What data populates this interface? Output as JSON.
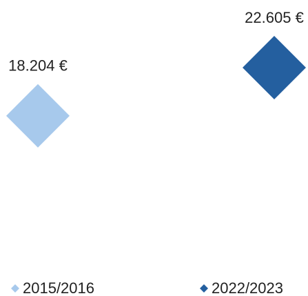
{
  "chart_data": {
    "type": "scatter",
    "ylim": [
      10000,
      25000
    ],
    "series": [
      {
        "name": "2015/2016",
        "color": "#a7c9ec",
        "values": [
          18204
        ],
        "value_labels": [
          "18.204 €"
        ]
      },
      {
        "name": "2022/2023",
        "color": "#245f9f",
        "values": [
          22605
        ],
        "value_labels": [
          "22.605 €"
        ]
      }
    ]
  }
}
